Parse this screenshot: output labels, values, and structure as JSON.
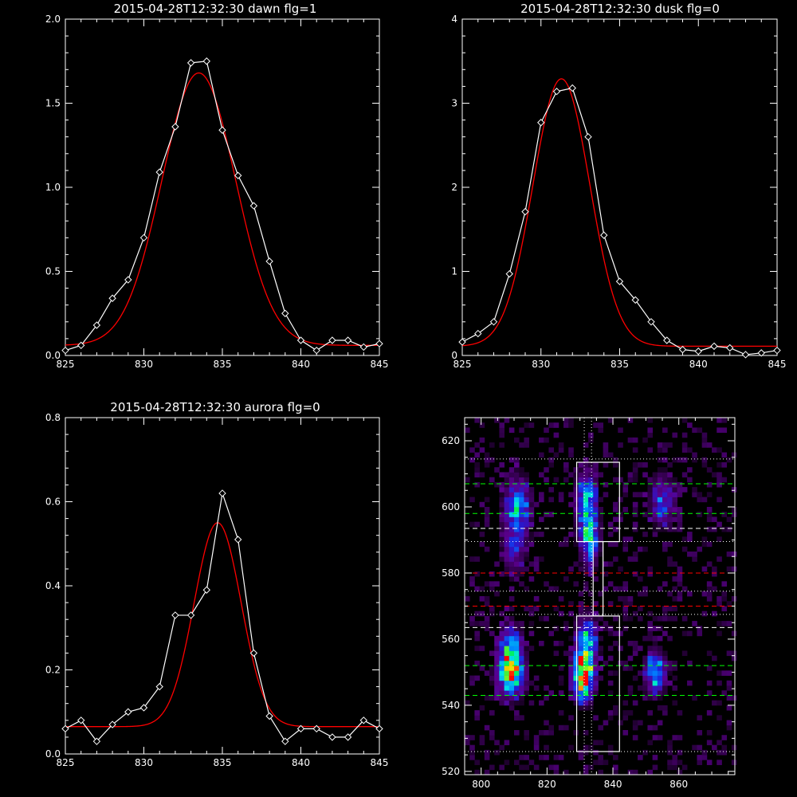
{
  "chart_data": [
    {
      "type": "line",
      "title": "2015-04-28T12:32:30 dawn flg=1",
      "xlim": [
        825,
        845
      ],
      "ylim": [
        0,
        2.0
      ],
      "xticks": [
        825,
        830,
        835,
        840,
        845
      ],
      "yticks": [
        0.0,
        0.5,
        1.0,
        1.5,
        2.0
      ],
      "ytick_labels": [
        "0.0",
        "0.5",
        "1.0",
        "1.5",
        "2.0"
      ],
      "series": [
        {
          "kind": "data",
          "color": "#ffffff",
          "marker": "diamond",
          "x": [
            825,
            826,
            827,
            828,
            829,
            830,
            831,
            832,
            833,
            834,
            835,
            836,
            837,
            838,
            839,
            840,
            841,
            842,
            843,
            844,
            845
          ],
          "y": [
            0.03,
            0.06,
            0.18,
            0.34,
            0.45,
            0.7,
            1.09,
            1.36,
            1.74,
            1.75,
            1.34,
            1.07,
            0.89,
            0.56,
            0.25,
            0.09,
            0.03,
            0.09,
            0.09,
            0.05,
            0.07
          ]
        },
        {
          "kind": "gaussian-fit",
          "color": "#ff0000",
          "center": 833.5,
          "amplitude": 1.62,
          "sigma": 2.35,
          "baseline": 0.06
        }
      ]
    },
    {
      "type": "line",
      "title": "2015-04-28T12:32:30 dusk flg=0",
      "xlim": [
        825,
        845
      ],
      "ylim": [
        0,
        4
      ],
      "xticks": [
        825,
        830,
        835,
        840,
        845
      ],
      "yticks": [
        0,
        1,
        2,
        3,
        4
      ],
      "ytick_labels": [
        "0",
        "1",
        "2",
        "3",
        "4"
      ],
      "series": [
        {
          "kind": "data",
          "color": "#ffffff",
          "marker": "diamond",
          "x": [
            825,
            826,
            827,
            828,
            829,
            830,
            831,
            832,
            833,
            834,
            835,
            836,
            837,
            838,
            839,
            840,
            841,
            842,
            843,
            844,
            845
          ],
          "y": [
            0.16,
            0.26,
            0.4,
            0.97,
            1.71,
            2.77,
            3.14,
            3.18,
            2.6,
            1.43,
            0.88,
            0.66,
            0.4,
            0.18,
            0.07,
            0.05,
            0.11,
            0.09,
            0.01,
            0.03,
            0.06
          ]
        },
        {
          "kind": "gaussian-fit",
          "color": "#ff0000",
          "center": 831.3,
          "amplitude": 3.18,
          "sigma": 1.8,
          "baseline": 0.11
        }
      ]
    },
    {
      "type": "line",
      "title": "2015-04-28T12:32:30 aurora flg=0",
      "xlim": [
        825,
        845
      ],
      "ylim": [
        0,
        0.8
      ],
      "xticks": [
        825,
        830,
        835,
        840,
        845
      ],
      "yticks": [
        0.0,
        0.2,
        0.4,
        0.6,
        0.8
      ],
      "ytick_labels": [
        "0.0",
        "0.2",
        "0.4",
        "0.6",
        "0.8"
      ],
      "series": [
        {
          "kind": "data",
          "color": "#ffffff",
          "marker": "diamond",
          "x": [
            825,
            826,
            827,
            828,
            829,
            830,
            831,
            832,
            833,
            834,
            835,
            836,
            837,
            838,
            839,
            840,
            841,
            842,
            843,
            844,
            845
          ],
          "y": [
            0.06,
            0.08,
            0.03,
            0.07,
            0.1,
            0.11,
            0.16,
            0.33,
            0.33,
            0.39,
            0.62,
            0.51,
            0.24,
            0.09,
            0.03,
            0.06,
            0.06,
            0.04,
            0.04,
            0.08,
            0.06
          ]
        },
        {
          "kind": "gaussian-fit",
          "color": "#ff0000",
          "center": 834.7,
          "amplitude": 0.485,
          "sigma": 1.5,
          "baseline": 0.065
        }
      ]
    },
    {
      "type": "heatmap",
      "xlim": [
        795,
        877
      ],
      "ylim": [
        519,
        627
      ],
      "xticks": [
        800,
        820,
        840,
        860
      ],
      "yticks": [
        520,
        540,
        560,
        580,
        600,
        620
      ],
      "colormap": "rainbow",
      "blobs": [
        {
          "x": 809,
          "y": 550,
          "sx": 2.5,
          "sy": 4.5,
          "amp": 0.75
        },
        {
          "x": 809,
          "y": 557,
          "sx": 2.0,
          "sy": 5.0,
          "amp": 0.45
        },
        {
          "x": 831,
          "y": 549,
          "sx": 2.0,
          "sy": 4.5,
          "amp": 1.0
        },
        {
          "x": 832,
          "y": 559,
          "sx": 2.0,
          "sy": 5.0,
          "amp": 0.55
        },
        {
          "x": 853,
          "y": 550,
          "sx": 2.0,
          "sy": 4.0,
          "amp": 0.5
        },
        {
          "x": 811,
          "y": 600,
          "sx": 2.5,
          "sy": 5.5,
          "amp": 0.45
        },
        {
          "x": 810,
          "y": 587,
          "sx": 2.5,
          "sy": 5.0,
          "amp": 0.22
        },
        {
          "x": 832,
          "y": 601,
          "sx": 2.0,
          "sy": 6.0,
          "amp": 0.55
        },
        {
          "x": 833,
          "y": 590,
          "sx": 1.8,
          "sy": 5.0,
          "amp": 0.45
        },
        {
          "x": 855,
          "y": 602,
          "sx": 2.5,
          "sy": 5.0,
          "amp": 0.3
        }
      ],
      "boxes": [
        {
          "x0": 829,
          "x1": 842,
          "y0": 589.5,
          "y1": 613.5
        },
        {
          "x0": 829,
          "x1": 842,
          "y0": 526,
          "y1": 567
        }
      ],
      "connector": {
        "x0": 834,
        "x1": 837,
        "y0": 567,
        "y1": 589.5
      },
      "vlines": [
        {
          "x": 831.3,
          "color": "#ffffff",
          "style": "dotted"
        },
        {
          "x": 833.5,
          "color": "#ffffff",
          "style": "dotted"
        }
      ],
      "hlines": [
        {
          "y": 614.5,
          "color": "#ffffff",
          "style": "dotted"
        },
        {
          "y": 607,
          "color": "#00ff00",
          "style": "dashed"
        },
        {
          "y": 598,
          "color": "#00ff00",
          "style": "dashed"
        },
        {
          "y": 593.5,
          "color": "#ffffff",
          "style": "dashed"
        },
        {
          "y": 589.5,
          "color": "#ffffff",
          "style": "dotted"
        },
        {
          "y": 580,
          "color": "#ff0000",
          "style": "dashed"
        },
        {
          "y": 574.5,
          "color": "#ffffff",
          "style": "dotted"
        },
        {
          "y": 570,
          "color": "#ff0000",
          "style": "dashed"
        },
        {
          "y": 567.5,
          "color": "#ffffff",
          "style": "dotted"
        },
        {
          "y": 563.5,
          "color": "#ffffff",
          "style": "dashed"
        },
        {
          "y": 552,
          "color": "#00ff00",
          "style": "dashed"
        },
        {
          "y": 543,
          "color": "#00ff00",
          "style": "dashed"
        },
        {
          "y": 526,
          "color": "#ffffff",
          "style": "dotted"
        }
      ]
    }
  ]
}
